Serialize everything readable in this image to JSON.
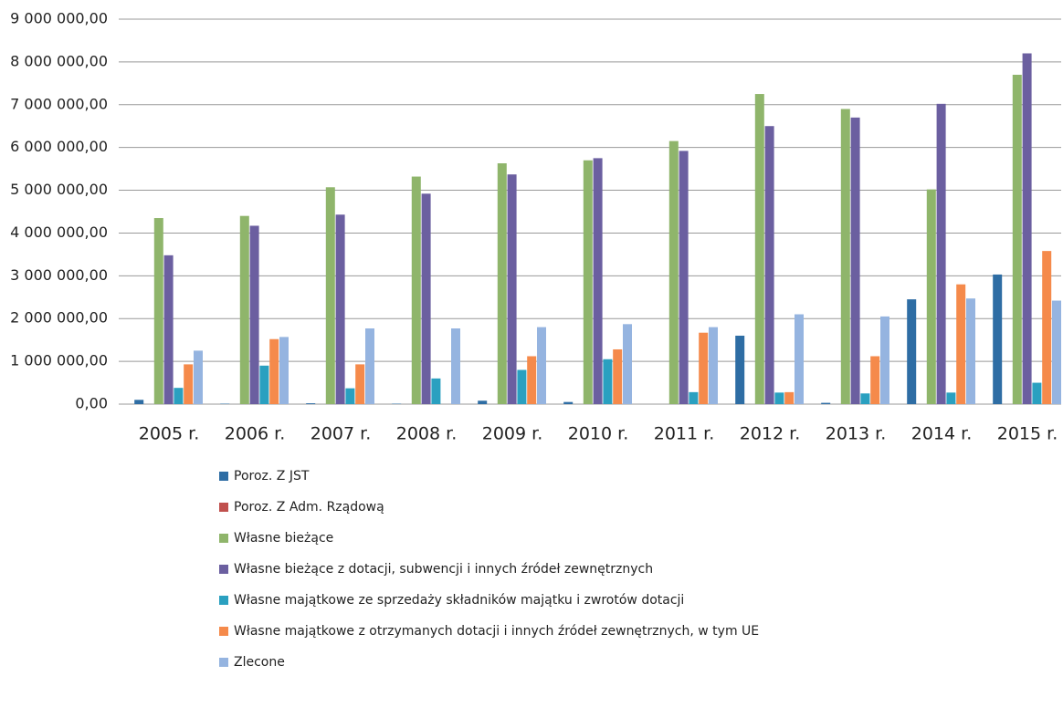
{
  "chart_data": {
    "type": "bar",
    "categories": [
      "2005 r.",
      "2006 r.",
      "2007 r.",
      "2008 r.",
      "2009 r.",
      "2010 r.",
      "2011 r.",
      "2012 r.",
      "2013 r.",
      "2014 r.",
      "2015 r."
    ],
    "series": [
      {
        "name": "Poroz. Z JST",
        "color": "#2e6da4",
        "values": [
          100000,
          10000,
          20000,
          10000,
          80000,
          50000,
          0,
          1600000,
          30000,
          2450000,
          3030000
        ]
      },
      {
        "name": "Poroz. Z Adm. Rządową",
        "color": "#c0504d",
        "values": [
          0,
          0,
          0,
          0,
          0,
          0,
          0,
          0,
          0,
          0,
          0
        ]
      },
      {
        "name": "Własne bieżące",
        "color": "#8fb56b",
        "values": [
          4350000,
          4400000,
          5070000,
          5320000,
          5630000,
          5700000,
          6150000,
          7250000,
          6900000,
          5020000,
          7700000
        ]
      },
      {
        "name": "Własne bieżące z dotacji, subwencji i innych źródeł zewnętrznych",
        "color": "#6b5fa0",
        "values": [
          3480000,
          4170000,
          4430000,
          4920000,
          5370000,
          5750000,
          5920000,
          6500000,
          6700000,
          7020000,
          8200000
        ]
      },
      {
        "name": "Własne majątkowe ze sprzedaży składników majątku i zwrotów dotacji",
        "color": "#2aa0c0",
        "values": [
          380000,
          900000,
          370000,
          600000,
          800000,
          1050000,
          280000,
          270000,
          250000,
          270000,
          500000
        ]
      },
      {
        "name": "Własne majątkowe z otrzymanych dotacji i innych źródeł zewnętrznych, w tym UE",
        "color": "#f58a4b",
        "values": [
          930000,
          1520000,
          930000,
          0,
          1120000,
          1280000,
          1670000,
          280000,
          1120000,
          2800000,
          3580000
        ]
      },
      {
        "name": "Zlecone",
        "color": "#95b4e0",
        "values": [
          1250000,
          1570000,
          1770000,
          1770000,
          1800000,
          1870000,
          1800000,
          2100000,
          2050000,
          2470000,
          2420000
        ]
      }
    ],
    "ylim": [
      0,
      9000000
    ],
    "yticks": [
      {
        "value": 0,
        "label": "0,00"
      },
      {
        "value": 1000000,
        "label": "1 000 000,00"
      },
      {
        "value": 2000000,
        "label": "2 000 000,00"
      },
      {
        "value": 3000000,
        "label": "3 000 000,00"
      },
      {
        "value": 4000000,
        "label": "4 000 000,00"
      },
      {
        "value": 5000000,
        "label": "5 000 000,00"
      },
      {
        "value": 6000000,
        "label": "6 000 000,00"
      },
      {
        "value": 7000000,
        "label": "7 000 000,00"
      },
      {
        "value": 8000000,
        "label": "8 000 000,00"
      },
      {
        "value": 9000000,
        "label": "9 000 000,00"
      }
    ],
    "grid": true,
    "legend": "bottom"
  }
}
